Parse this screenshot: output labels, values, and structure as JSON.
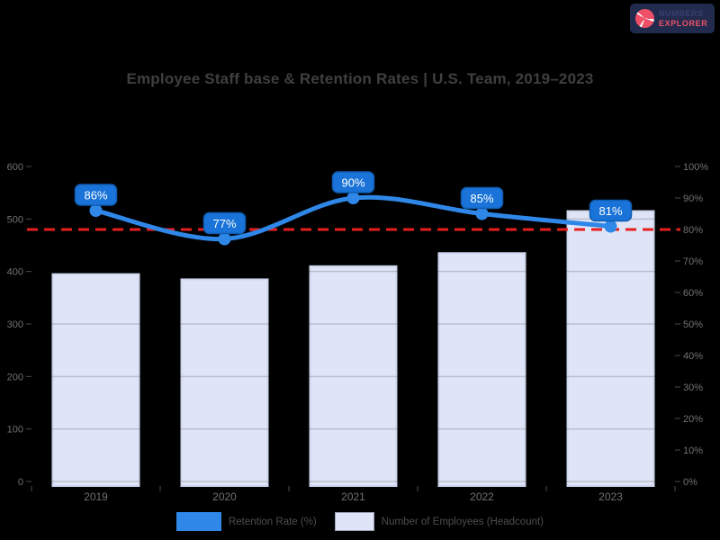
{
  "page": {
    "background": "#000000"
  },
  "logo": {
    "icon": "pie-chart-logo",
    "line1": "NUMBERS",
    "line2": "EXPLORER",
    "bg_color": "#222b4d",
    "accent_color": "#ef5068"
  },
  "title": "Employee Staff base & Retention Rates | U.S. Team, 2019–2023",
  "chart_data": {
    "type": "bar",
    "subtype": "combo-bar-line",
    "title": "Employee Staff base & Retention Rates | U.S. Team, 2019–2023",
    "categories": [
      "2019",
      "2020",
      "2021",
      "2022",
      "2023"
    ],
    "series": [
      {
        "name": "Retention Rate (%)",
        "type": "line",
        "axis": "right",
        "color": "#2f87e8",
        "values": [
          86,
          77,
          90,
          85,
          81
        ],
        "point_labels": [
          "86%",
          "77%",
          "90%",
          "85%",
          "81%"
        ]
      },
      {
        "name": "Number of Employees (Headcount)",
        "type": "bar",
        "axis": "left",
        "color": "#dfe5f7",
        "border_color": "#cdd5ed",
        "values": [
          395,
          385,
          410,
          435,
          515
        ]
      }
    ],
    "target_line": {
      "value": 80,
      "axis": "right",
      "color": "#e61e1e",
      "style": "dashed"
    },
    "axes": {
      "left": {
        "min": 0,
        "max": 600,
        "step": 100,
        "tick_labels": [
          "600",
          "500",
          "400",
          "300",
          "200",
          "100",
          "0"
        ]
      },
      "right": {
        "min": 0,
        "max": 100,
        "step": 10,
        "tick_labels": [
          "100%",
          "90%",
          "80%",
          "70%",
          "60%",
          "50%",
          "40%",
          "30%",
          "20%",
          "10%",
          "0%"
        ]
      }
    },
    "grid": true,
    "legend_position": "bottom",
    "xlabel": "",
    "ylabel": ""
  },
  "legend": {
    "items": [
      {
        "label": "Retention Rate (%)",
        "swatch_color": "#2f87e8"
      },
      {
        "label": "Number of Employees (Headcount)",
        "swatch_color": "#dfe5f7"
      }
    ]
  },
  "colors": {
    "background": "#000000",
    "line_blue": "#2f87e8",
    "bar_fill": "#dfe5f7",
    "bar_border": "#cdd5ed",
    "target_red": "#e61e1e",
    "point_label_fill": "#1a73d8",
    "point_label_border": "#0f5cb0",
    "title_text": "#3f3f3f",
    "axis_text": "#717171",
    "legend_text": "#4d4d4d"
  }
}
